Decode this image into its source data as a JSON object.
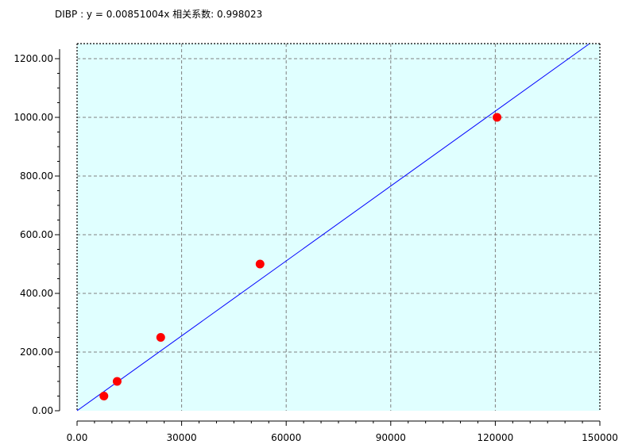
{
  "chart_data": {
    "type": "scatter",
    "title": "DIBP : y = 0.00851004x 相关系数:  0.998023",
    "xlabel": "",
    "ylabel": "",
    "xlim": [
      0,
      150000
    ],
    "ylim": [
      0,
      1250
    ],
    "x_ticks": [
      0,
      30000,
      60000,
      90000,
      120000,
      150000
    ],
    "x_tick_labels": [
      "0.00",
      "30000",
      "60000",
      "90000",
      "120000",
      "150000"
    ],
    "y_ticks": [
      0,
      200,
      400,
      600,
      800,
      1000,
      1200
    ],
    "y_tick_labels": [
      "0.00",
      "200.00",
      "400.00",
      "600.00",
      "800.00",
      "1000.00",
      "1200.00"
    ],
    "grid": true,
    "points": {
      "x": [
        7700,
        11500,
        24000,
        52500,
        120500
      ],
      "y": [
        50,
        100,
        250,
        500,
        1000
      ]
    },
    "fit_line": {
      "slope": 0.00851004,
      "intercept": 0
    },
    "colors": {
      "plot_background": "#e0ffff",
      "points": "#ff0000",
      "line": "#0000ff",
      "grid": "#808080"
    }
  }
}
